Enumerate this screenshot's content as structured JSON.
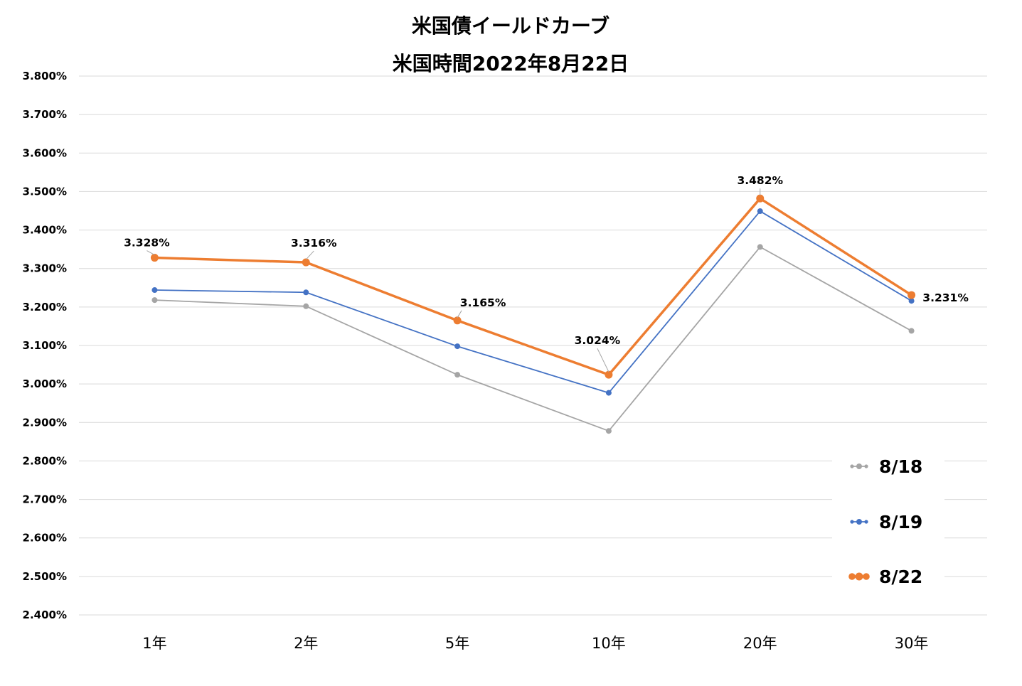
{
  "chart_data": {
    "type": "line",
    "title": [
      "米国債イールドカーブ",
      "米国時間2022年8月22日"
    ],
    "xlabel": "",
    "ylabel": "",
    "categories": [
      "1年",
      "2年",
      "5年",
      "10年",
      "20年",
      "30年"
    ],
    "ylim": [
      2.4,
      3.8
    ],
    "ytick_step": 0.1,
    "ytick_format": "%",
    "ytick_decimals": 3,
    "grid": true,
    "legend_position": "bottom-right",
    "series": [
      {
        "name": "8/18",
        "color": "#a5a5a5",
        "values": [
          3.218,
          3.202,
          3.024,
          2.878,
          3.356,
          3.138
        ]
      },
      {
        "name": "8/19",
        "color": "#4472c4",
        "values": [
          3.244,
          3.238,
          3.098,
          2.977,
          3.449,
          3.216
        ]
      },
      {
        "name": "8/22",
        "color": "#ed7d31",
        "values": [
          3.328,
          3.316,
          3.165,
          3.024,
          3.482,
          3.231
        ],
        "data_labels": [
          "3.328%",
          "3.316%",
          "3.165%",
          "3.024%",
          "3.482%",
          "3.231%"
        ]
      }
    ]
  }
}
